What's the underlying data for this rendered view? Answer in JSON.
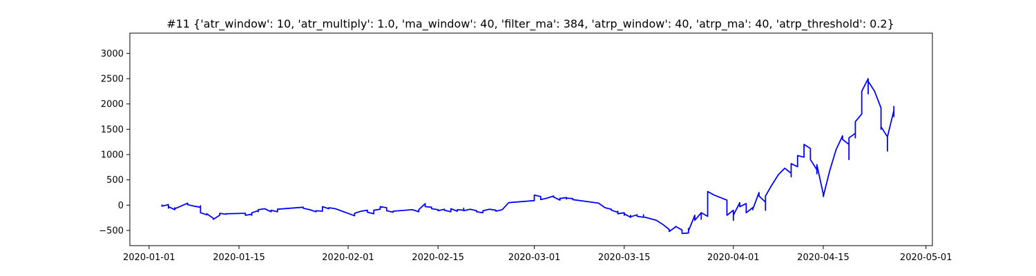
{
  "chart_data": {
    "type": "line",
    "title": "#11 {'atr_window': 10, 'atr_multiply': 1.0, 'ma_window': 40, 'filter_ma': 384, 'atrp_window': 40, 'atrp_ma': 40, 'atrp_threshold': 0.2}",
    "xlabel": "",
    "ylabel": "",
    "grid": false,
    "legend": "none",
    "color": "#0000ff",
    "xlim": [
      "2019-12-29",
      "2020-05-02"
    ],
    "ylim": [
      -800,
      3400
    ],
    "x_ticks": [
      "2020-01-01",
      "2020-01-15",
      "2020-02-01",
      "2020-02-15",
      "2020-03-01",
      "2020-03-15",
      "2020-04-01",
      "2020-04-15",
      "2020-05-01"
    ],
    "y_ticks": [
      -500,
      0,
      500,
      1000,
      1500,
      2000,
      2500,
      3000
    ],
    "series": [
      {
        "points": [
          [
            "2020-01-03",
            0
          ],
          [
            "2020-01-03",
            5
          ],
          [
            "2020-01-03",
            -20
          ],
          [
            "2020-01-04",
            10
          ],
          [
            "2020-01-04",
            -60
          ],
          [
            "2020-01-04",
            -30
          ],
          [
            "2020-01-05",
            -90
          ],
          [
            "2020-01-05",
            -50
          ],
          [
            "2020-01-05",
            -70
          ],
          [
            "2020-01-07",
            40
          ],
          [
            "2020-01-07",
            10
          ],
          [
            "2020-01-08",
            -20
          ],
          [
            "2020-01-09",
            -40
          ],
          [
            "2020-01-09",
            -10
          ],
          [
            "2020-01-09",
            -150
          ],
          [
            "2020-01-10",
            -190
          ],
          [
            "2020-01-10",
            -170
          ],
          [
            "2020-01-11",
            -260
          ],
          [
            "2020-01-11",
            -280
          ],
          [
            "2020-01-12",
            -200
          ],
          [
            "2020-01-12",
            -160
          ],
          [
            "2020-01-13",
            -180
          ],
          [
            "2020-01-13",
            -170
          ],
          [
            "2020-01-16",
            -160
          ],
          [
            "2020-01-16",
            -200
          ],
          [
            "2020-01-17",
            -180
          ],
          [
            "2020-01-17",
            -200
          ],
          [
            "2020-01-17",
            -150
          ],
          [
            "2020-01-18",
            -110
          ],
          [
            "2020-01-18",
            -130
          ],
          [
            "2020-01-18",
            -90
          ],
          [
            "2020-01-19",
            -70
          ],
          [
            "2020-01-20",
            -130
          ],
          [
            "2020-01-20",
            -100
          ],
          [
            "2020-01-21",
            -130
          ],
          [
            "2020-01-21",
            -80
          ],
          [
            "2020-01-25",
            -40
          ],
          [
            "2020-01-25",
            -60
          ],
          [
            "2020-01-26",
            -90
          ],
          [
            "2020-01-27",
            -130
          ],
          [
            "2020-01-27",
            -110
          ],
          [
            "2020-01-28",
            -120
          ],
          [
            "2020-01-28",
            -90
          ],
          [
            "2020-01-28",
            -30
          ],
          [
            "2020-01-29",
            -70
          ],
          [
            "2020-01-29",
            -50
          ],
          [
            "2020-01-30",
            -70
          ],
          [
            "2020-02-02",
            -210
          ],
          [
            "2020-02-02",
            -160
          ],
          [
            "2020-02-03",
            -120
          ],
          [
            "2020-02-04",
            -100
          ],
          [
            "2020-02-04",
            -140
          ],
          [
            "2020-02-05",
            -170
          ],
          [
            "2020-02-05",
            -100
          ],
          [
            "2020-02-06",
            -80
          ],
          [
            "2020-02-06",
            -30
          ],
          [
            "2020-02-07",
            -50
          ],
          [
            "2020-02-07",
            -110
          ],
          [
            "2020-02-08",
            -140
          ],
          [
            "2020-02-08",
            -120
          ],
          [
            "2020-02-11",
            -90
          ],
          [
            "2020-02-12",
            -130
          ],
          [
            "2020-02-12",
            -90
          ],
          [
            "2020-02-13",
            30
          ],
          [
            "2020-02-13",
            -30
          ],
          [
            "2020-02-14",
            -40
          ],
          [
            "2020-02-14",
            -70
          ],
          [
            "2020-02-15",
            -90
          ],
          [
            "2020-02-15",
            -110
          ],
          [
            "2020-02-16",
            -80
          ],
          [
            "2020-02-16",
            -100
          ],
          [
            "2020-02-17",
            -130
          ],
          [
            "2020-02-17",
            -70
          ],
          [
            "2020-02-18",
            -120
          ],
          [
            "2020-02-18",
            -90
          ],
          [
            "2020-02-19",
            -100
          ],
          [
            "2020-02-19",
            -60
          ],
          [
            "2020-02-19",
            -110
          ],
          [
            "2020-02-20",
            -80
          ],
          [
            "2020-02-21",
            -110
          ],
          [
            "2020-02-21",
            -130
          ],
          [
            "2020-02-22",
            -150
          ],
          [
            "2020-02-22",
            -110
          ],
          [
            "2020-02-23",
            -80
          ],
          [
            "2020-02-24",
            -100
          ],
          [
            "2020-02-24",
            -120
          ],
          [
            "2020-02-25",
            -90
          ],
          [
            "2020-02-26",
            50
          ],
          [
            "2020-03-01",
            90
          ],
          [
            "2020-03-01",
            110
          ],
          [
            "2020-03-01",
            200
          ],
          [
            "2020-03-02",
            170
          ],
          [
            "2020-03-02",
            110
          ],
          [
            "2020-03-03",
            140
          ],
          [
            "2020-03-04",
            180
          ],
          [
            "2020-03-04",
            160
          ],
          [
            "2020-03-05",
            100
          ],
          [
            "2020-03-05",
            140
          ],
          [
            "2020-03-05",
            130
          ],
          [
            "2020-03-06",
            150
          ],
          [
            "2020-03-06",
            120
          ],
          [
            "2020-03-06",
            140
          ],
          [
            "2020-03-07",
            130
          ],
          [
            "2020-03-07",
            110
          ],
          [
            "2020-03-11",
            40
          ],
          [
            "2020-03-12",
            -50
          ],
          [
            "2020-03-13",
            -80
          ],
          [
            "2020-03-13",
            -100
          ],
          [
            "2020-03-14",
            -140
          ],
          [
            "2020-03-14",
            -120
          ],
          [
            "2020-03-14",
            -170
          ],
          [
            "2020-03-15",
            -150
          ],
          [
            "2020-03-15",
            -200
          ],
          [
            "2020-03-15",
            -170
          ],
          [
            "2020-03-16",
            -240
          ],
          [
            "2020-03-16",
            -200
          ],
          [
            "2020-03-16",
            -230
          ],
          [
            "2020-03-17",
            -190
          ],
          [
            "2020-03-17",
            -220
          ],
          [
            "2020-03-18",
            -240
          ],
          [
            "2020-03-18",
            -190
          ],
          [
            "2020-03-18",
            -230
          ],
          [
            "2020-03-20",
            -300
          ],
          [
            "2020-03-21",
            -380
          ],
          [
            "2020-03-22",
            -480
          ],
          [
            "2020-03-22",
            -520
          ],
          [
            "2020-03-23",
            -430
          ],
          [
            "2020-03-23",
            -420
          ],
          [
            "2020-03-24",
            -490
          ],
          [
            "2020-03-24",
            -560
          ],
          [
            "2020-03-25",
            -550
          ],
          [
            "2020-03-25",
            -460
          ],
          [
            "2020-03-25",
            -510
          ],
          [
            "2020-03-26",
            -200
          ],
          [
            "2020-03-26",
            -300
          ],
          [
            "2020-03-27",
            -150
          ],
          [
            "2020-03-27",
            -280
          ],
          [
            "2020-03-27",
            -150
          ],
          [
            "2020-03-28",
            -220
          ],
          [
            "2020-03-28",
            270
          ],
          [
            "2020-03-29",
            200
          ],
          [
            "2020-03-31",
            100
          ],
          [
            "2020-03-31",
            -150
          ],
          [
            "2020-03-31",
            -200
          ],
          [
            "2020-04-01",
            -100
          ],
          [
            "2020-04-01",
            -260
          ],
          [
            "2020-04-01",
            -300
          ],
          [
            "2020-04-01",
            -200
          ],
          [
            "2020-04-02",
            50
          ],
          [
            "2020-04-02",
            20
          ],
          [
            "2020-04-02",
            -30
          ],
          [
            "2020-04-03",
            30
          ],
          [
            "2020-04-03",
            -150
          ],
          [
            "2020-04-04",
            -50
          ],
          [
            "2020-04-04",
            -90
          ],
          [
            "2020-04-05",
            250
          ],
          [
            "2020-04-05",
            180
          ],
          [
            "2020-04-06",
            60
          ],
          [
            "2020-04-06",
            -100
          ],
          [
            "2020-04-06",
            20
          ],
          [
            "2020-04-06",
            180
          ],
          [
            "2020-04-07",
            400
          ],
          [
            "2020-04-08",
            600
          ],
          [
            "2020-04-09",
            730
          ],
          [
            "2020-04-10",
            630
          ],
          [
            "2020-04-10",
            560
          ],
          [
            "2020-04-10",
            820
          ],
          [
            "2020-04-11",
            760
          ],
          [
            "2020-04-11",
            900
          ],
          [
            "2020-04-11",
            980
          ],
          [
            "2020-04-12",
            950
          ],
          [
            "2020-04-12",
            1150
          ],
          [
            "2020-04-12",
            1200
          ],
          [
            "2020-04-13",
            1120
          ],
          [
            "2020-04-13",
            930
          ],
          [
            "2020-04-13",
            900
          ],
          [
            "2020-04-14",
            700
          ],
          [
            "2020-04-14",
            620
          ],
          [
            "2020-04-14",
            800
          ],
          [
            "2020-04-15",
            220
          ],
          [
            "2020-04-15",
            170
          ],
          [
            "2020-04-16",
            680
          ],
          [
            "2020-04-17",
            1100
          ],
          [
            "2020-04-18",
            1370
          ],
          [
            "2020-04-18",
            1300
          ],
          [
            "2020-04-19",
            1200
          ],
          [
            "2020-04-19",
            900
          ],
          [
            "2020-04-19",
            1330
          ],
          [
            "2020-04-20",
            1420
          ],
          [
            "2020-04-20",
            1380
          ],
          [
            "2020-04-20",
            1330
          ],
          [
            "2020-04-20",
            1650
          ],
          [
            "2020-04-21",
            1800
          ],
          [
            "2020-04-21",
            2000
          ],
          [
            "2020-04-21",
            2250
          ],
          [
            "2020-04-22",
            2500
          ],
          [
            "2020-04-22",
            2250
          ],
          [
            "2020-04-22",
            2200
          ],
          [
            "2020-04-22",
            2450
          ],
          [
            "2020-04-23",
            2250
          ],
          [
            "2020-04-24",
            1920
          ],
          [
            "2020-04-24",
            1500
          ],
          [
            "2020-04-24",
            1550
          ],
          [
            "2020-04-25",
            1350
          ],
          [
            "2020-04-25",
            1200
          ],
          [
            "2020-04-25",
            1070
          ],
          [
            "2020-04-25",
            1200
          ],
          [
            "2020-04-25",
            1350
          ],
          [
            "2020-04-26",
            1870
          ],
          [
            "2020-04-26",
            1800
          ],
          [
            "2020-04-26",
            1950
          ],
          [
            "2020-04-26",
            1750
          ],
          [
            "2020-04-26",
            1800
          ],
          [
            "2020-04-26",
            1780
          ]
        ]
      }
    ]
  }
}
